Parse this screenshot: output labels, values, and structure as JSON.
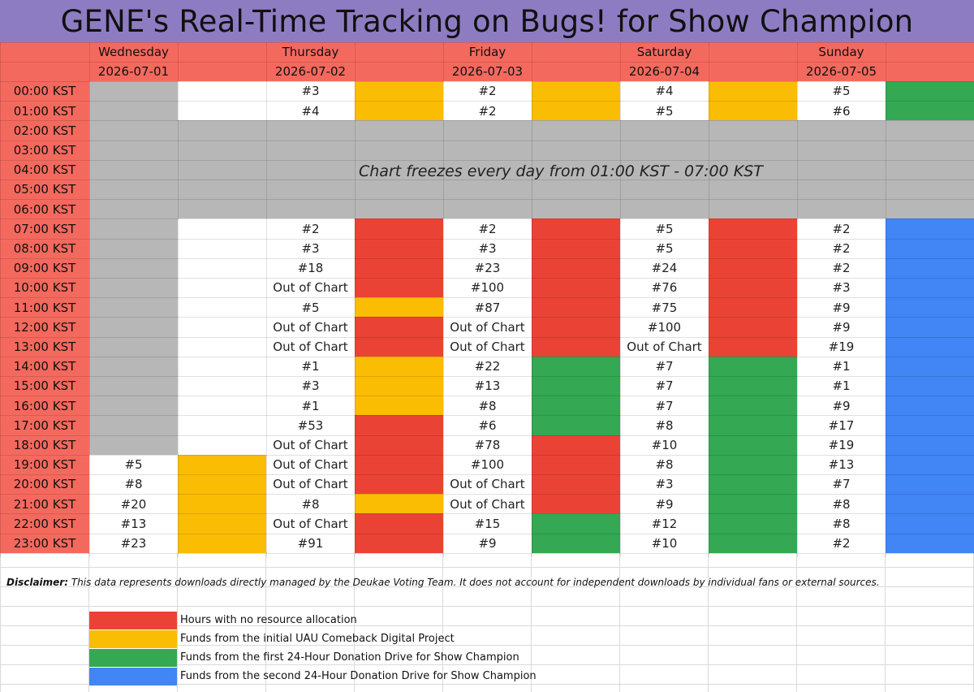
{
  "title": "GENE's Real-Time Tracking on Bugs! for Show Champion",
  "days": [
    {
      "name": "Wednesday",
      "date": "2026-07-01"
    },
    {
      "name": "Thursday",
      "date": "2026-07-02"
    },
    {
      "name": "Friday",
      "date": "2026-07-03"
    },
    {
      "name": "Saturday",
      "date": "2026-07-04"
    },
    {
      "name": "Sunday",
      "date": "2026-07-05"
    }
  ],
  "times": [
    "00:00 KST",
    "01:00 KST",
    "02:00 KST",
    "03:00 KST",
    "04:00 KST",
    "05:00 KST",
    "06:00 KST",
    "07:00 KST",
    "08:00 KST",
    "09:00 KST",
    "10:00 KST",
    "11:00 KST",
    "12:00 KST",
    "13:00 KST",
    "14:00 KST",
    "15:00 KST",
    "16:00 KST",
    "17:00 KST",
    "18:00 KST",
    "19:00 KST",
    "20:00 KST",
    "21:00 KST",
    "22:00 KST",
    "23:00 KST"
  ],
  "freeze_note": "Chart freezes every day from 01:00 KST - 07:00 KST",
  "rankings": {
    "wednesday": [
      "",
      "",
      "",
      "",
      "",
      "",
      "",
      "",
      "",
      "",
      "",
      "",
      "",
      "",
      "",
      "",
      "",
      "",
      "",
      "#5",
      "#8",
      "#20",
      "#13",
      "#23"
    ],
    "thursday": [
      "#3",
      "#4",
      "",
      "",
      "",
      "",
      "",
      "#2",
      "#3",
      "#18",
      "Out of Chart",
      "#5",
      "Out of Chart",
      "Out of Chart",
      "#1",
      "#3",
      "#1",
      "#53",
      "Out of Chart",
      "Out of Chart",
      "Out of Chart",
      "#8",
      "Out of Chart",
      "#91"
    ],
    "friday": [
      "#2",
      "#2",
      "",
      "",
      "",
      "",
      "",
      "#2",
      "#3",
      "#23",
      "#100",
      "#87",
      "Out of Chart",
      "Out of Chart",
      "#22",
      "#13",
      "#8",
      "#6",
      "#78",
      "#100",
      "Out of Chart",
      "Out of Chart",
      "#15",
      "#9"
    ],
    "saturday": [
      "#4",
      "#5",
      "",
      "",
      "",
      "",
      "",
      "#5",
      "#5",
      "#24",
      "#76",
      "#75",
      "#100",
      "Out of Chart",
      "#7",
      "#7",
      "#7",
      "#8",
      "#10",
      "#8",
      "#3",
      "#9",
      "#12",
      "#10"
    ],
    "sunday": [
      "#5",
      "#6",
      "",
      "",
      "",
      "",
      "",
      "#2",
      "#2",
      "#2",
      "#3",
      "#9",
      "#9",
      "#19",
      "#1",
      "#1",
      "#9",
      "#17",
      "#19",
      "#13",
      "#7",
      "#8",
      "#8",
      "#2"
    ]
  },
  "status_colors": {
    "none": "#ea4335",
    "uau_project": "#fbbc04",
    "first_drive": "#34a853",
    "second_drive": "#4285f4",
    "frozen": "#b7b7b7",
    "header": "#f4695e",
    "title_banner": "#8e7cc3"
  },
  "allocation": {
    "wednesday": [
      "gray",
      "gray",
      "gray",
      "gray",
      "gray",
      "gray",
      "gray",
      "gray",
      "gray",
      "gray",
      "gray",
      "gray",
      "gray",
      "gray",
      "gray",
      "gray",
      "gray",
      "gray",
      "gray",
      "yellow",
      "yellow",
      "yellow",
      "yellow",
      "yellow"
    ],
    "thursday": [
      "yellow",
      "yellow",
      "gray",
      "gray",
      "gray",
      "gray",
      "gray",
      "red",
      "red",
      "red",
      "red",
      "yellow",
      "red",
      "red",
      "yellow",
      "yellow",
      "yellow",
      "red",
      "red",
      "red",
      "red",
      "yellow",
      "red",
      "red"
    ],
    "friday": [
      "yellow",
      "yellow",
      "gray",
      "gray",
      "gray",
      "gray",
      "gray",
      "red",
      "red",
      "red",
      "red",
      "red",
      "red",
      "red",
      "green",
      "green",
      "green",
      "green",
      "red",
      "red",
      "red",
      "red",
      "green",
      "green"
    ],
    "saturday": [
      "yellow",
      "yellow",
      "gray",
      "gray",
      "gray",
      "gray",
      "gray",
      "red",
      "red",
      "red",
      "red",
      "red",
      "red",
      "red",
      "green",
      "green",
      "green",
      "green",
      "green",
      "green",
      "green",
      "green",
      "green",
      "green"
    ],
    "sunday": [
      "green",
      "green",
      "gray",
      "gray",
      "gray",
      "gray",
      "gray",
      "blue",
      "blue",
      "blue",
      "blue",
      "blue",
      "blue",
      "blue",
      "blue",
      "blue",
      "blue",
      "blue",
      "blue",
      "blue",
      "blue",
      "blue",
      "blue",
      "blue"
    ]
  },
  "disclaimer": {
    "label": "Disclaimer:",
    "text": " This data represents downloads directly managed by the Deukae Voting Team. It does not account for independent downloads by individual fans or external sources."
  },
  "legend": [
    {
      "color": "#ea4335",
      "label": "Hours with no resource allocation"
    },
    {
      "color": "#fbbc04",
      "label": "Funds from the initial UAU Comeback Digital Project"
    },
    {
      "color": "#34a853",
      "label": "Funds from the first 24-Hour Donation Drive for Show Champion"
    },
    {
      "color": "#4285f4",
      "label": "Funds from the second 24-Hour Donation Drive for Show Champion"
    }
  ]
}
